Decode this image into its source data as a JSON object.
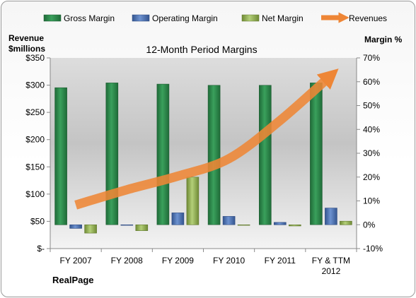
{
  "chart_data": {
    "type": "bar",
    "title": "12-Month Period Margins",
    "company": "RealPage",
    "categories": [
      "FY 2007",
      "FY 2008",
      "FY 2009",
      "FY 2010",
      "FY 2011",
      "FY & TTM 2012"
    ],
    "y_left": {
      "label_line1": "Revenue",
      "label_line2": "$millions",
      "range": [
        0,
        350
      ],
      "ticks": [
        0,
        50,
        100,
        150,
        200,
        250,
        300,
        350
      ],
      "tick_labels": [
        "$-",
        "$50",
        "$100",
        "$150",
        "$200",
        "$250",
        "$300",
        "$350"
      ]
    },
    "y_right": {
      "label": "Margin %",
      "range": [
        -10,
        70
      ],
      "ticks": [
        -10,
        0,
        10,
        20,
        30,
        40,
        50,
        60,
        70
      ],
      "tick_labels": [
        "-10%",
        "0%",
        "10%",
        "20%",
        "30%",
        "40%",
        "50%",
        "60%",
        "70%"
      ]
    },
    "series": [
      {
        "name": "Gross Margin",
        "type": "bar",
        "axis": "right",
        "color": "#2e8b4c",
        "values": [
          57.5,
          59.5,
          59,
          58.5,
          58.5,
          59.5
        ]
      },
      {
        "name": "Operating Margin",
        "type": "bar",
        "axis": "right",
        "color": "#4f76b8",
        "values": [
          -1.5,
          0,
          5,
          3.5,
          1,
          7
        ]
      },
      {
        "name": "Net Margin",
        "type": "bar",
        "axis": "right",
        "color": "#9bbb59",
        "values": [
          -3.5,
          -2.5,
          20,
          0,
          -0.5,
          1.5
        ]
      },
      {
        "name": "Revenues",
        "type": "line",
        "axis": "left",
        "color": "#ee8636",
        "values": [
          80,
          108,
          133,
          165,
          235,
          318
        ]
      }
    ],
    "grid": false,
    "legend_position": "top"
  }
}
